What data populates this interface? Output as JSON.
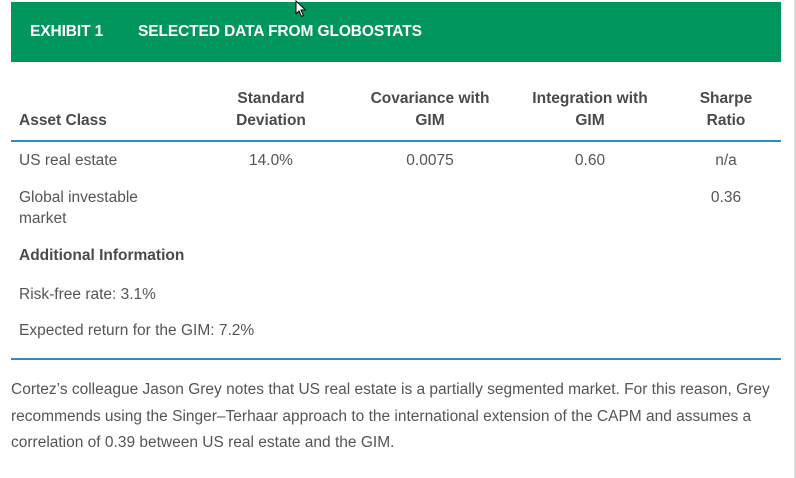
{
  "exhibit": {
    "number": "EXHIBIT 1",
    "title": "SELECTED DATA FROM GLOBOSTATS"
  },
  "table": {
    "headers": {
      "asset_class": "Asset Class",
      "std_dev_line1": "Standard",
      "std_dev_line2": "Deviation",
      "cov_line1": "Covariance with",
      "cov_line2": "GIM",
      "int_line1": "Integration with",
      "int_line2": "GIM",
      "sharpe_line1": "Sharpe",
      "sharpe_line2": "Ratio"
    },
    "rows": [
      {
        "asset_class": "US real estate",
        "std_dev": "14.0%",
        "covariance": "0.0075",
        "integration": "0.60",
        "sharpe": "n/a"
      },
      {
        "asset_class_line1": "Global investable",
        "asset_class_line2": "market",
        "std_dev": "",
        "covariance": "",
        "integration": "",
        "sharpe": "0.36"
      }
    ],
    "additional_info_heading": "Additional Information",
    "additional_info": [
      "Risk-free rate: 3.1%",
      "Expected return for the GIM: 7.2%"
    ]
  },
  "paragraph": "Cortez’s colleague Jason Grey notes that US real estate is a partially segmented market. For this reason, Grey recommends using the Singer–Terhaar approach to the international extension of the CAPM and assumes a correlation of 0.39 between US real estate and the GIM.",
  "colors": {
    "header_green": "#00965e",
    "rule_blue": "#2a8ec6"
  }
}
